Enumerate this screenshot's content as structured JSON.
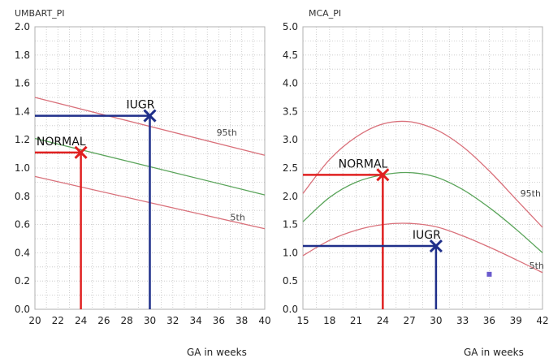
{
  "chart_data": [
    {
      "type": "line",
      "title": "UMBART_PI",
      "xlabel": "",
      "ylabel": "",
      "xlim": [
        20,
        40
      ],
      "ylim": [
        0.0,
        2.0
      ],
      "x_ticks": [
        "20",
        "22",
        "24",
        "26",
        "28",
        "30",
        "32",
        "34",
        "36",
        "38",
        "40"
      ],
      "y_ticks": [
        "0.0",
        "0.2",
        "0.4",
        "0.6",
        "0.8",
        "1.0",
        "1.2",
        "1.4",
        "1.6",
        "1.8",
        "2.0"
      ],
      "grid": true,
      "series": [
        {
          "name": "95th",
          "color": "#d9707a",
          "x": [
            20,
            40
          ],
          "y": [
            1.5,
            1.09
          ]
        },
        {
          "name": "",
          "color": "#5aa45a",
          "x": [
            20,
            40
          ],
          "y": [
            1.21,
            0.81
          ]
        },
        {
          "name": "5th",
          "color": "#d9707a",
          "x": [
            20,
            40
          ],
          "y": [
            0.94,
            0.57
          ]
        }
      ],
      "markers": [
        {
          "label": "NORMAL",
          "x": 24,
          "y": 1.11,
          "color": "#e02020"
        },
        {
          "label": "IUGR",
          "x": 30,
          "y": 1.37,
          "color": "#1f2f8a"
        }
      ],
      "percentile_labels": [
        {
          "text": "95th",
          "x": 35.8,
          "y": 1.23
        },
        {
          "text": "5th",
          "x": 37,
          "y": 0.63
        }
      ]
    },
    {
      "type": "line",
      "title": "MCA_PI",
      "xlabel": "GA in weeks",
      "ylabel": "",
      "xlim": [
        15,
        42
      ],
      "ylim": [
        0.0,
        5.0
      ],
      "x_ticks": [
        "15",
        "18",
        "21",
        "24",
        "27",
        "30",
        "33",
        "36",
        "39",
        "42"
      ],
      "y_ticks": [
        "0.0",
        "0.5",
        "1.0",
        "1.5",
        "2.0",
        "2.5",
        "3.0",
        "3.5",
        "4.0",
        "4.5",
        "5.0"
      ],
      "grid": true,
      "series": [
        {
          "name": "95th",
          "color": "#d9707a",
          "x": [
            15,
            18,
            21,
            24,
            27,
            30,
            33,
            36,
            39,
            42
          ],
          "y": [
            2.05,
            2.65,
            3.05,
            3.28,
            3.32,
            3.18,
            2.88,
            2.45,
            1.95,
            1.45
          ]
        },
        {
          "name": "",
          "color": "#5aa45a",
          "x": [
            15,
            18,
            21,
            24,
            27,
            30,
            33,
            36,
            39,
            42
          ],
          "y": [
            1.55,
            1.98,
            2.25,
            2.38,
            2.42,
            2.34,
            2.12,
            1.8,
            1.42,
            1.0
          ]
        },
        {
          "name": "5th",
          "color": "#d9707a",
          "x": [
            15,
            18,
            21,
            24,
            27,
            30,
            33,
            36,
            39,
            42
          ],
          "y": [
            0.95,
            1.22,
            1.4,
            1.5,
            1.52,
            1.46,
            1.3,
            1.1,
            0.88,
            0.65
          ]
        }
      ],
      "markers": [
        {
          "label": "NORMAL",
          "x": 24,
          "y": 2.38,
          "color": "#e02020"
        },
        {
          "label": "IUGR",
          "x": 30,
          "y": 1.12,
          "color": "#1f2f8a"
        }
      ],
      "extra_points": [
        {
          "x": 36,
          "y": 0.62,
          "color": "#6a5acd"
        }
      ],
      "percentile_labels": [
        {
          "text": "95th",
          "x": 39.5,
          "y": 2.0
        },
        {
          "text": "5th",
          "x": 40.5,
          "y": 0.72
        }
      ]
    }
  ],
  "x_axis_titles": [
    "GA in weeks",
    "GA in weeks"
  ]
}
